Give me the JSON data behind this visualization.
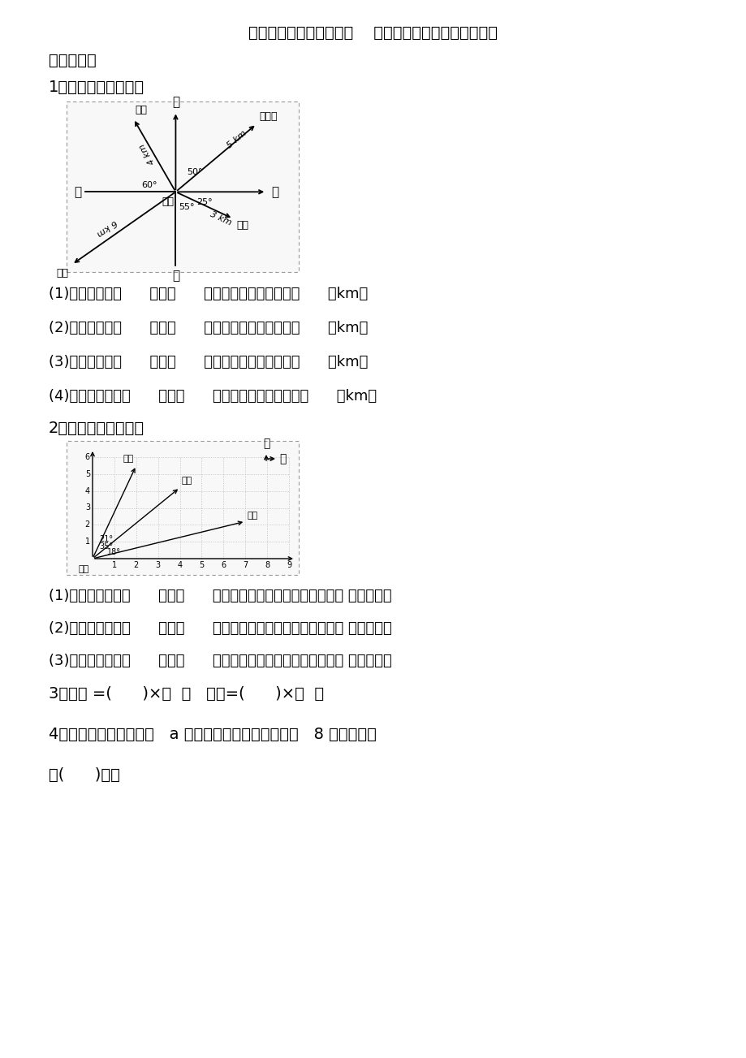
{
  "title": "北师大版数学五年级下册    第六、七单元测试（基础卷）",
  "section1": "一、填空。",
  "q1_label": "1．以邮局为观测点。",
  "q2_label": "2．以小明为观测点。",
  "q3_label": "3．路程 =(      )×（  ）   总价=(      )×（  ）",
  "q4_label": "4．饮料店里，一杯咖啡   a 元，一杯果汁比一杯咖啡贵   8 元，一杯果",
  "q4_label2": "汁(      )元。",
  "fill_q1": [
    "(1)银行在邮局（      ）偏（      ）的方向上，距离邮局（      ）km。",
    "(2)商场在邮局（      ）偏（      ）的方向上，距离邮局（      ）km。",
    "(3)学校在邮局（      ）偏（      ）的方向上，距离邮局（      ）km。",
    "(4)电影院在邮局（      ）偏（      ）的方向上，距离邮局（      ）km。"
  ],
  "fill_q2": [
    "(1)张兰坐在小明（      ）偏（      ）的方向上，她的位置还可以用（ ）来表示。",
    "(2)文文坐在小明（      ）偏（      ）的方向上，他的位置还可以用（ ）来表示。",
    "(3)王强坐在小明（      ）偏（      ）的方向上，他的位置还可以用（ ）来表示。"
  ],
  "bg_color": "#ffffff",
  "text_color": "#000000"
}
